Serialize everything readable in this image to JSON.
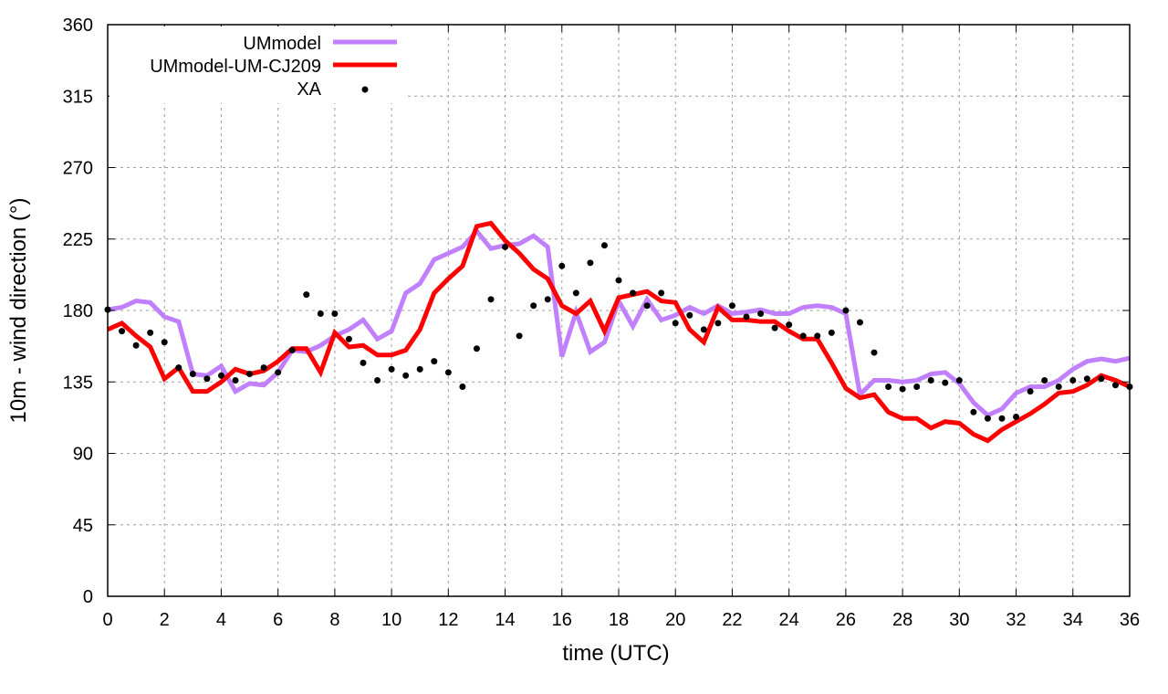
{
  "chart_data": {
    "type": "line",
    "title": "",
    "xlabel": "time (UTC)",
    "ylabel": "10m - wind direction (°)",
    "xlim": [
      0,
      36
    ],
    "ylim": [
      0,
      360
    ],
    "xticks": [
      0,
      2,
      4,
      6,
      8,
      10,
      12,
      14,
      16,
      18,
      20,
      22,
      24,
      26,
      28,
      30,
      32,
      34,
      36
    ],
    "yticks": [
      0,
      45,
      90,
      135,
      180,
      225,
      270,
      315,
      360
    ],
    "grid": true,
    "legend_position": "top-left",
    "x_step": 0.5,
    "series": [
      {
        "name": "UMmodel",
        "style": "line",
        "color": "#c080ff",
        "values": [
          180.5,
          182,
          186,
          185,
          176,
          173,
          140,
          139,
          145,
          129,
          134,
          133,
          141,
          155,
          154,
          158,
          164,
          168,
          174,
          162,
          167,
          191,
          197,
          212,
          216,
          220,
          230,
          219,
          221,
          222,
          227,
          220,
          151,
          179,
          154,
          160,
          186,
          170,
          187,
          174,
          177,
          182,
          178,
          183,
          178,
          179,
          180.5,
          178,
          178,
          182,
          183,
          182,
          178,
          127,
          136,
          136,
          135,
          136,
          140,
          141,
          134,
          122,
          114,
          118,
          128,
          132,
          132,
          136,
          143,
          148,
          149.5,
          148,
          150
        ]
      },
      {
        "name": "UMmodel-UM-CJ209",
        "style": "line",
        "color": "#ff0000",
        "values": [
          168,
          172,
          164,
          157,
          137,
          144,
          129,
          129,
          135,
          143,
          140,
          142,
          148,
          156,
          156,
          141,
          166,
          157,
          158,
          152,
          152,
          155,
          168,
          191,
          200,
          208,
          233,
          235,
          224,
          216,
          206,
          200,
          183,
          178,
          186,
          167,
          188,
          190,
          192,
          186,
          185,
          168,
          160,
          182,
          174,
          174,
          173,
          173,
          167,
          162,
          162,
          147,
          131,
          125,
          127,
          116,
          112,
          112,
          106,
          110,
          109,
          102,
          98,
          105,
          110,
          115,
          121,
          128,
          129,
          133,
          139,
          136,
          132
        ]
      },
      {
        "name": "XA",
        "style": "points",
        "color": "#000000",
        "values": [
          180.5,
          167,
          158,
          166,
          160,
          144,
          140,
          137,
          139,
          136,
          140,
          144,
          141,
          155,
          190,
          178,
          178,
          162,
          147,
          136,
          143,
          139,
          143,
          148,
          141,
          132,
          156,
          187,
          220,
          164,
          183,
          187,
          208,
          191,
          210,
          221,
          199,
          191,
          183,
          191,
          172,
          177,
          168,
          172,
          183,
          176,
          178,
          169,
          171,
          164,
          164,
          166,
          180,
          172.5,
          153.5,
          132,
          130.5,
          132,
          136,
          134.5,
          136,
          116,
          112,
          112,
          113,
          129,
          136,
          132,
          136,
          137,
          137,
          133,
          132
        ]
      }
    ]
  }
}
